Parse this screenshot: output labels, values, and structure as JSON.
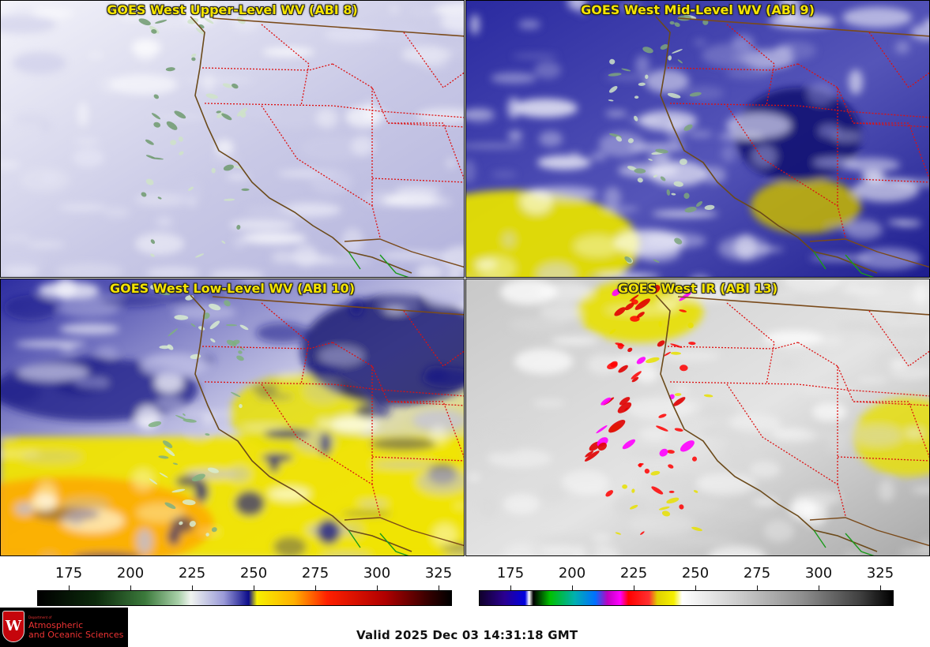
{
  "panels": [
    {
      "title": "GOES West Upper-Level WV (ABI 8)",
      "scheme": "upper"
    },
    {
      "title": "GOES West Mid-Level WV (ABI 9)",
      "scheme": "mid"
    },
    {
      "title": "GOES West Low-Level WV (ABI 10)",
      "scheme": "low"
    },
    {
      "title": "GOES West IR (ABI 13)",
      "scheme": "ir"
    }
  ],
  "colorbars": [
    {
      "name": "water-vapor-colorbar",
      "ticks": [
        "175",
        "200",
        "225",
        "250",
        "275",
        "300",
        "325"
      ],
      "stops": [
        "#000000",
        "#0f2a0f",
        "#2f6b2f",
        "#7fb07f",
        "#e8f0e8",
        "#8a8ad0",
        "#10108a",
        "#f0f000",
        "#ff8c00",
        "#ff0000",
        "#8a0000",
        "#000000"
      ]
    },
    {
      "name": "ir-colorbar",
      "ticks": [
        "175",
        "200",
        "225",
        "250",
        "275",
        "300",
        "325"
      ],
      "stops": [
        "#000033",
        "#2000a0",
        "#0000ff",
        "#ffffff",
        "#000000",
        "#00d000",
        "#00c0c0",
        "#0060ff",
        "#ff00ff",
        "#ff0000",
        "#f0f000",
        "#ffffff",
        "#d0d0d0",
        "#909090",
        "#505050",
        "#000000"
      ]
    }
  ],
  "logo": {
    "dept": "Department of",
    "line1": "Atmospheric",
    "line2": "and Oceanic Sciences",
    "crest": "W"
  },
  "valid_text": "Valid 2025 Dec 03 14:31:18 GMT"
}
